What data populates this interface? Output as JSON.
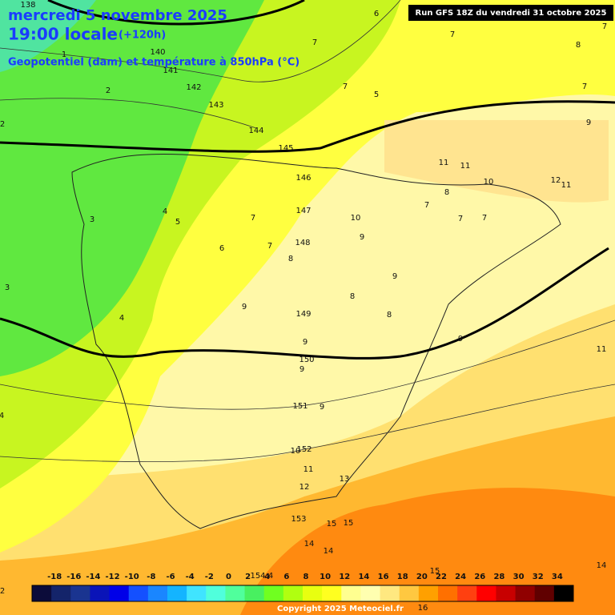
{
  "header": {
    "date": "mercredi 5 novembre 2025",
    "time": "19:00 locale",
    "lead": "(+120h)",
    "subtitle": "Geopotentiel (dam) et température à 850hPa (°C)",
    "run": "Run GFS 18Z du vendredi 31 octobre 2025"
  },
  "map": {
    "geopotential_labels": [
      "138",
      "140",
      "141",
      "142",
      "143",
      "144",
      "145",
      "146",
      "147",
      "148",
      "149",
      "150",
      "151",
      "152",
      "153",
      "154"
    ],
    "temperature_labels": [
      "6",
      "7",
      "7",
      "8",
      "7",
      "7",
      "7",
      "5",
      "2",
      "1",
      "2",
      "9",
      "11",
      "11",
      "10",
      "12",
      "11",
      "8",
      "7",
      "7",
      "7",
      "10",
      "9",
      "7",
      "5",
      "4",
      "3",
      "6",
      "7",
      "8",
      "9",
      "8",
      "8",
      "9",
      "4",
      "3",
      "9",
      "9",
      "9",
      "11",
      "9",
      "10",
      "11",
      "12",
      "13",
      "15",
      "15",
      "14",
      "14",
      "15",
      "16",
      "14",
      "2",
      "4",
      "4"
    ]
  },
  "legend": {
    "labels": [
      "-18",
      "-16",
      "-14",
      "-12",
      "-10",
      "-8",
      "-6",
      "-4",
      "-2",
      "0",
      "2",
      "4",
      "6",
      "8",
      "10",
      "12",
      "14",
      "16",
      "18",
      "20",
      "22",
      "24",
      "26",
      "28",
      "30",
      "32",
      "34"
    ],
    "colors": [
      "#0c0c3a",
      "#14246a",
      "#1a3490",
      "#0a14b8",
      "#0000e8",
      "#1450ff",
      "#1a86ff",
      "#14b4ff",
      "#40e4ff",
      "#50ffdc",
      "#50ff9c",
      "#48f060",
      "#70ff20",
      "#b0ff10",
      "#e8ff10",
      "#ffff20",
      "#ffff90",
      "#ffffb0",
      "#ffe880",
      "#ffc840",
      "#ffa000",
      "#ff7000",
      "#ff4010",
      "#ff0000",
      "#c80000",
      "#900000",
      "#600000",
      "#000000"
    ]
  },
  "footer": "Copyright 2025 Meteociel.fr"
}
